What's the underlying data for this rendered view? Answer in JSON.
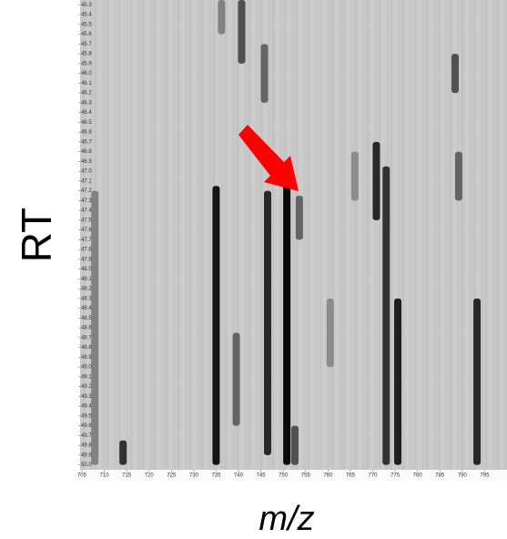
{
  "chart_data": {
    "type": "heatmap",
    "xlabel": "m/z",
    "ylabel": "RT",
    "xlim": [
      704.6,
      800
    ],
    "ylim": [
      45.25,
      50.05
    ],
    "y_reversed": true,
    "xticks": [
      705,
      710,
      715,
      720,
      725,
      730,
      735,
      740,
      745,
      750,
      755,
      760,
      765,
      770,
      775,
      780,
      785,
      790,
      795
    ],
    "yticks": [
      45.3,
      45.4,
      45.5,
      45.6,
      45.7,
      45.8,
      45.9,
      {
        "value": 46,
        "label": "46.0"
      },
      46.1,
      46.2,
      46.3,
      46.4,
      46.5,
      46.6,
      46.7,
      46.8,
      46.9,
      {
        "value": 47,
        "label": "47.0"
      },
      47.1,
      47.2,
      47.3,
      47.4,
      47.5,
      47.6,
      47.7,
      47.8,
      47.9,
      {
        "value": 48,
        "label": "48.0"
      },
      48.1,
      48.2,
      48.3,
      48.4,
      48.5,
      48.6,
      48.7,
      48.8,
      48.9,
      {
        "value": 49,
        "label": "49.0"
      },
      49.1,
      49.2,
      49.3,
      49.4,
      49.5,
      49.6,
      49.7,
      49.8,
      49.9,
      {
        "value": 50,
        "label": "50.0"
      }
    ],
    "streaks": {
      "x": [
        735,
        746.5,
        750.8,
        770.8,
        773,
        775.6,
        793.3,
        788.4,
        745.8,
        740.7,
        739.5,
        752.6,
        753.6,
        714.2,
        707.9,
        789.2,
        736.2,
        760.5,
        766
      ],
      "y_start": [
        47.15,
        47.2,
        47.0,
        46.7,
        46.95,
        48.3,
        48.3,
        45.8,
        45.7,
        45.25,
        48.65,
        49.6,
        47.25,
        49.75,
        47.2,
        46.8,
        45.25,
        48.3,
        46.8
      ],
      "y_end": [
        50.0,
        49.9,
        50.0,
        47.5,
        50.0,
        50.0,
        50.0,
        46.2,
        46.3,
        45.9,
        49.6,
        50.0,
        47.7,
        50.0,
        50.0,
        47.3,
        45.6,
        49.0,
        47.3
      ],
      "darkness": [
        0.9,
        0.8,
        0.95,
        0.8,
        0.75,
        0.85,
        0.8,
        0.6,
        0.5,
        0.6,
        0.5,
        0.6,
        0.5,
        0.75,
        0.35,
        0.5,
        0.35,
        0.3,
        0.3
      ]
    },
    "background": "#c9c9c9",
    "annotation_color": "#ff0000"
  }
}
